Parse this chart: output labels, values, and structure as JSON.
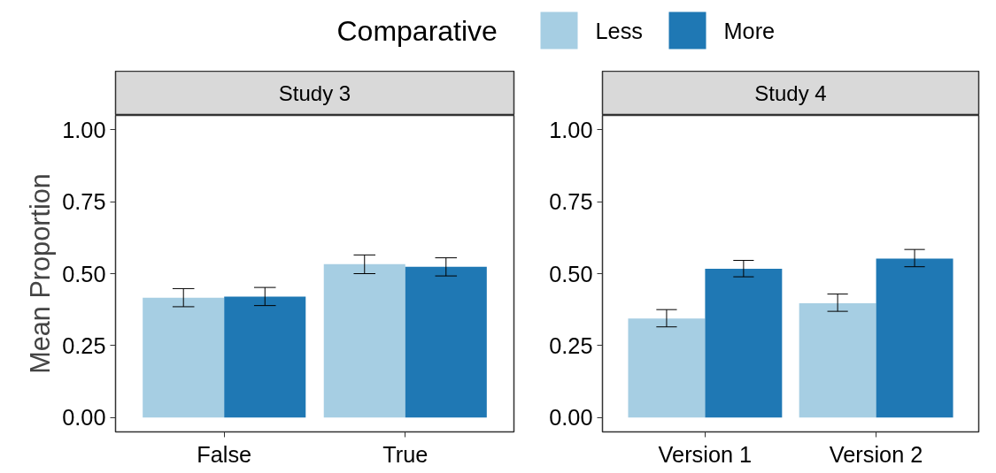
{
  "chart_data": [
    {
      "type": "bar",
      "title": "Study 3",
      "ylabel": "Mean Proportion",
      "legend_title": "Comparative",
      "legend": "top",
      "grid": false,
      "categories": [
        "False",
        "True"
      ],
      "ylim": [
        -0.05,
        1.05
      ],
      "yticks": [
        {
          "value": 0,
          "label": "0.00"
        },
        {
          "value": 0.25,
          "label": "0.25"
        },
        {
          "value": 0.5,
          "label": "0.50"
        },
        {
          "value": 0.75,
          "label": "0.75"
        },
        {
          "value": 1,
          "label": "1.00"
        }
      ],
      "series": [
        {
          "name": "Less",
          "color": "#a6cee3",
          "values": [
            0.416,
            0.533
          ],
          "errors": [
            [
              0.385,
              0.448
            ],
            [
              0.5,
              0.565
            ]
          ]
        },
        {
          "name": "More",
          "color": "#1f78b4",
          "values": [
            0.42,
            0.524
          ],
          "errors": [
            [
              0.389,
              0.452
            ],
            [
              0.492,
              0.555
            ]
          ]
        }
      ]
    },
    {
      "type": "bar",
      "title": "Study 4",
      "grid": false,
      "categories": [
        "Version 1",
        "Version 2"
      ],
      "ylim": [
        -0.05,
        1.05
      ],
      "yticks": [
        {
          "value": 0,
          "label": "0.00"
        },
        {
          "value": 0.25,
          "label": "0.25"
        },
        {
          "value": 0.5,
          "label": "0.50"
        },
        {
          "value": 0.75,
          "label": "0.75"
        },
        {
          "value": 1,
          "label": "1.00"
        }
      ],
      "series": [
        {
          "color": "#a6cee3",
          "values": [
            0.344,
            0.397
          ],
          "errors": [
            [
              0.315,
              0.375
            ],
            [
              0.369,
              0.429
            ]
          ]
        },
        {
          "color": "#1f78b4",
          "values": [
            0.517,
            0.552
          ],
          "errors": [
            [
              0.489,
              0.546
            ],
            [
              0.524,
              0.584
            ]
          ]
        }
      ]
    }
  ]
}
